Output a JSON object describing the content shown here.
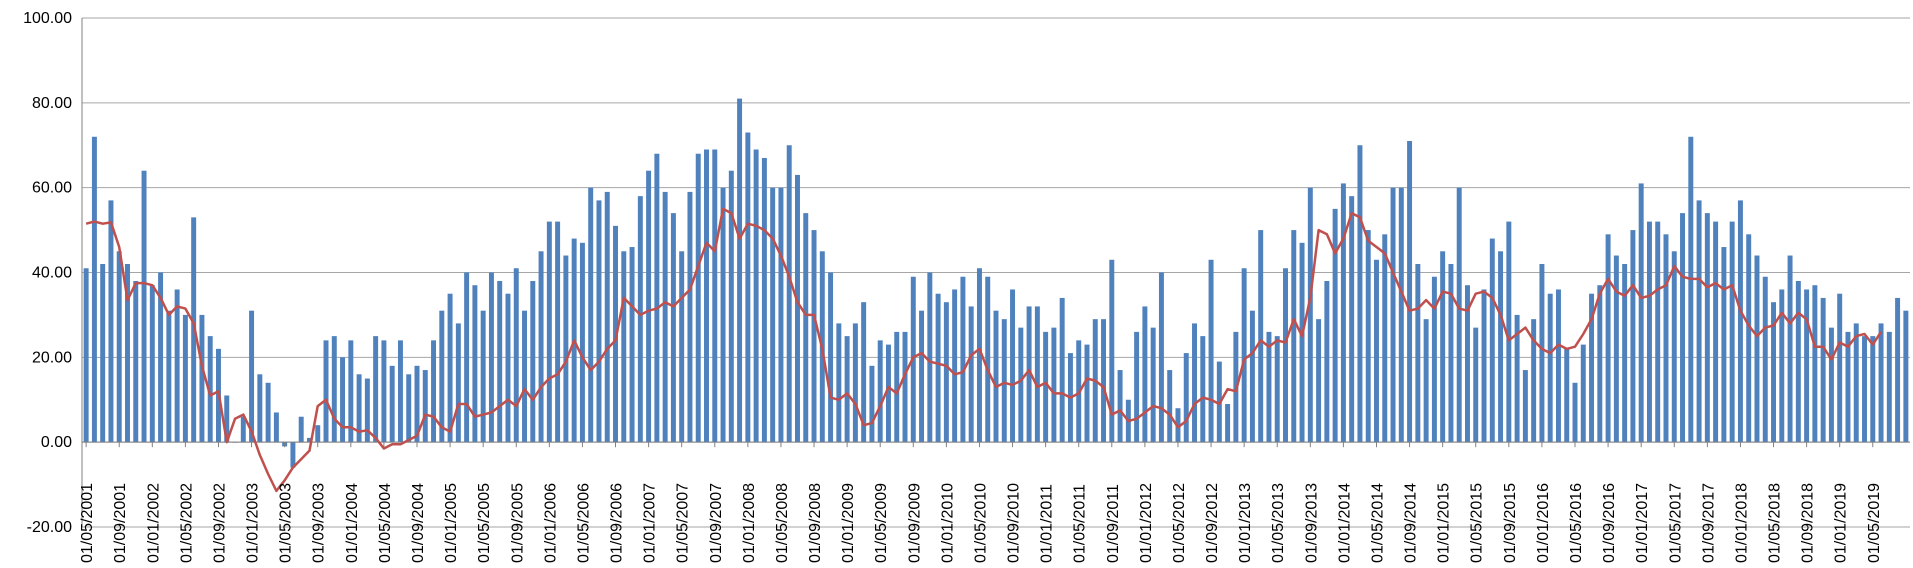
{
  "chart_data": {
    "type": "bar",
    "title": "",
    "xlabel": "",
    "ylabel": "",
    "ylim": [
      -20,
      100
    ],
    "y_ticks": [
      "-20.00",
      "0.00",
      "20.00",
      "40.00",
      "60.00",
      "80.00",
      "100.00"
    ],
    "y_tick_values": [
      -20,
      0,
      20,
      40,
      60,
      80,
      100
    ],
    "grid": "horizontal",
    "legend": "none",
    "x_start": "2001-05",
    "x_tick_every_months": 4,
    "x_ticks": [
      "01/05/2001",
      "01/09/2001",
      "01/01/2002",
      "01/05/2002",
      "01/09/2002",
      "01/01/2003",
      "01/05/2003",
      "01/09/2003",
      "01/01/2004",
      "01/05/2004",
      "01/09/2004",
      "01/01/2005",
      "01/05/2005",
      "01/09/2005",
      "01/01/2006",
      "01/05/2006",
      "01/09/2006",
      "01/01/2007",
      "01/05/2007",
      "01/09/2007",
      "01/01/2008",
      "01/05/2008",
      "01/09/2008",
      "01/01/2009",
      "01/05/2009",
      "01/09/2009",
      "01/01/2010",
      "01/05/2010",
      "01/09/2010",
      "01/01/2011",
      "01/05/2011",
      "01/09/2011",
      "01/01/2012",
      "01/05/2012",
      "01/09/2012",
      "01/01/2013",
      "01/05/2013",
      "01/09/2013",
      "01/01/2014",
      "01/05/2014",
      "01/09/2014",
      "01/01/2015",
      "01/05/2015",
      "01/09/2015",
      "01/01/2016",
      "01/05/2016",
      "01/09/2016",
      "01/01/2017",
      "01/05/2017",
      "01/09/2017",
      "01/01/2018",
      "01/05/2018",
      "01/09/2018",
      "01/01/2019",
      "01/05/2019"
    ],
    "colors": {
      "bars": "#4F81BD",
      "line": "#C0504D",
      "grid": "#A6A6A6",
      "axis": "#808080"
    },
    "series": [
      {
        "type": "bar",
        "values": [
          41,
          72,
          42,
          57,
          45,
          42,
          38,
          64,
          37,
          40,
          31,
          36,
          30,
          53,
          30,
          25,
          22,
          11,
          0,
          6,
          31,
          16,
          14,
          7,
          -1,
          -6,
          6,
          1,
          4,
          24,
          25,
          20,
          24,
          16,
          15,
          25,
          24,
          18,
          24,
          16,
          18,
          17,
          24,
          31,
          35,
          28,
          40,
          37,
          31,
          40,
          38,
          35,
          41,
          31,
          38,
          45,
          52,
          52,
          44,
          48,
          47,
          60,
          57,
          59,
          51,
          45,
          46,
          58,
          64,
          68,
          59,
          54,
          45,
          59,
          68,
          69,
          69,
          60,
          64,
          81,
          73,
          69,
          67,
          60,
          60,
          70,
          63,
          54,
          50,
          45,
          40,
          28,
          25,
          28,
          33,
          18,
          24,
          23,
          26,
          26,
          39,
          31,
          40,
          35,
          33,
          36,
          39,
          32,
          41,
          39,
          31,
          29,
          36,
          27,
          32,
          32,
          26,
          27,
          34,
          21,
          24,
          23,
          29,
          29,
          43,
          17,
          10,
          26,
          32,
          27,
          40,
          17,
          8,
          21,
          28,
          25,
          43,
          19,
          9,
          26,
          41,
          31,
          50,
          26,
          25,
          41,
          50,
          47,
          60,
          29,
          38,
          55,
          61,
          58,
          70,
          50,
          43,
          49,
          60,
          60,
          71,
          42,
          29,
          39,
          45,
          42,
          60,
          37,
          27,
          36,
          48,
          45,
          52,
          30,
          17,
          29,
          42,
          35,
          36,
          22,
          14,
          23,
          35,
          37,
          49,
          44,
          42,
          50,
          61,
          52,
          52,
          49,
          45,
          54,
          72,
          57,
          54,
          52,
          46,
          52,
          57,
          49,
          44,
          39,
          33,
          36,
          44,
          38,
          36,
          37,
          34,
          27,
          35,
          26,
          28,
          25,
          25,
          28,
          26,
          34,
          31
        ]
      },
      {
        "type": "line",
        "values": [
          51.5,
          52,
          51.5,
          51.8,
          46,
          33.5,
          37.5,
          37.5,
          37,
          34,
          30,
          32,
          31.5,
          28,
          18,
          11,
          12,
          0,
          5.5,
          6.5,
          2.5,
          -3,
          -7.5,
          -11.5,
          -9,
          -6,
          -4,
          -2,
          8.5,
          10,
          5.5,
          3.5,
          3.5,
          2.5,
          2.8,
          1,
          -1.5,
          -0.5,
          -0.5,
          0.5,
          1.5,
          6.5,
          6,
          3.5,
          2.5,
          9,
          9,
          6,
          6.5,
          7,
          8.5,
          10,
          8.5,
          12.5,
          10,
          13,
          15,
          16,
          19,
          24,
          20,
          17,
          19,
          22,
          24,
          34,
          32,
          30,
          31,
          31.5,
          33,
          32,
          34,
          36,
          41.5,
          47,
          45,
          55,
          54,
          48,
          51.5,
          51,
          50,
          48,
          44,
          39,
          33,
          30,
          30,
          22,
          10.5,
          10,
          11.5,
          9,
          4,
          4.5,
          8.5,
          13,
          11.5,
          16,
          20,
          21,
          19,
          18.5,
          18,
          16,
          16.5,
          20.5,
          22,
          17,
          13,
          14,
          13.5,
          14.5,
          17,
          13,
          14,
          11.5,
          11.5,
          10.5,
          11.5,
          15,
          14.5,
          13,
          6.5,
          7.5,
          5,
          5.5,
          7,
          8.5,
          8,
          6.5,
          3.5,
          5,
          9,
          10.5,
          10,
          9,
          12.5,
          12,
          19.5,
          21,
          24,
          22.5,
          24,
          23.5,
          29,
          25,
          34,
          50,
          49,
          44.5,
          48,
          54,
          53,
          47.5,
          46,
          44.5,
          40,
          35.5,
          31,
          31.5,
          33.5,
          31.5,
          35.5,
          35,
          31.5,
          31,
          35,
          35.5,
          34,
          30,
          24,
          25.5,
          27,
          24,
          22,
          21,
          23,
          22,
          22.5,
          25.5,
          29,
          35,
          38.5,
          35.5,
          34.5,
          37,
          34,
          34.5,
          36,
          37,
          41.5,
          39,
          38.5,
          38.5,
          36.5,
          37.5,
          36,
          37,
          31,
          27.5,
          25,
          27,
          27.5,
          30.5,
          28,
          30.5,
          29,
          22.5,
          22.5,
          19.5,
          23.5,
          22.5,
          25,
          25.5,
          23,
          26
        ]
      }
    ]
  }
}
